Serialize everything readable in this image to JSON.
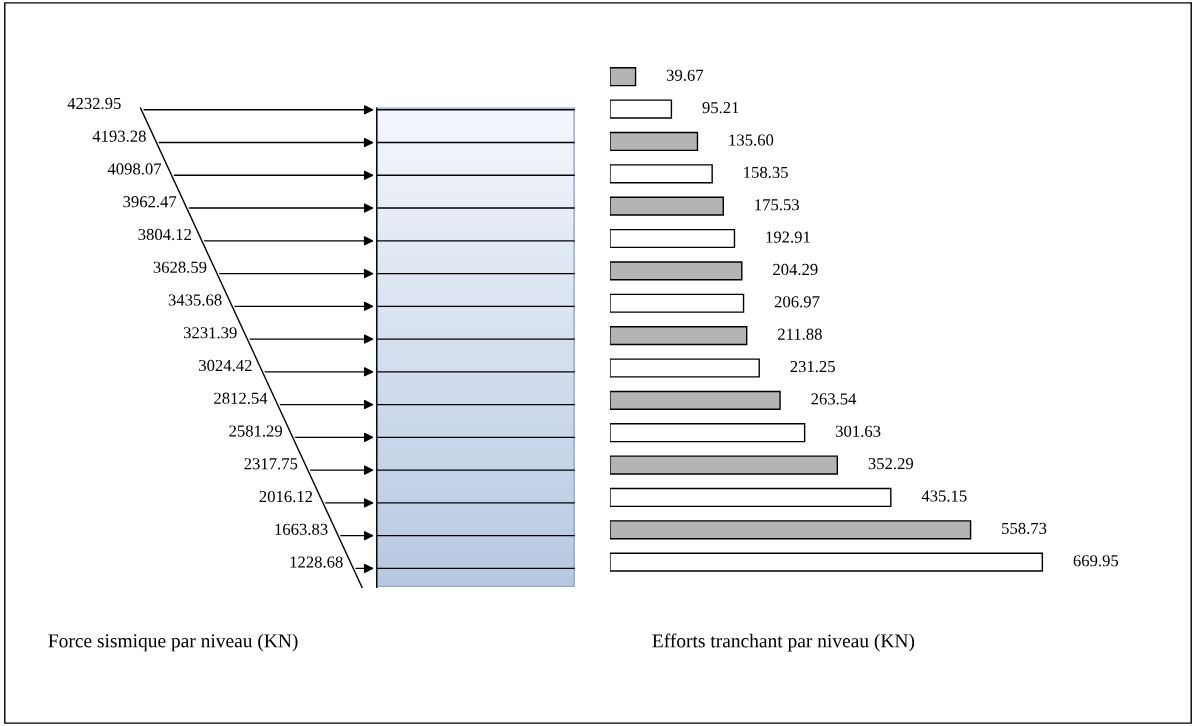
{
  "chart_data": [
    {
      "type": "other",
      "xlabel": "Force sismique par niveau (KN)",
      "categories": [
        null,
        null,
        null,
        null,
        null,
        null,
        null,
        null,
        null,
        null,
        null,
        null,
        null,
        null,
        null
      ],
      "values": [
        4232.95,
        4193.28,
        4098.07,
        3962.47,
        3804.12,
        3628.59,
        3435.68,
        3231.39,
        3024.42,
        2812.54,
        2581.29,
        2317.75,
        2016.12,
        1663.83,
        1228.68
      ],
      "value_labels": [
        "4232.95",
        "4193.28",
        "4098.07",
        "3962.47",
        "3804.12",
        "3628.59",
        "3435.68",
        "3231.39",
        "3024.42",
        "2812.54",
        "2581.29",
        "2317.75",
        "2016.12",
        "1663.83",
        "1228.68"
      ]
    },
    {
      "type": "bar",
      "orientation": "horizontal",
      "xlabel": "Efforts tranchant par niveau (KN)",
      "categories": [
        null,
        null,
        null,
        null,
        null,
        null,
        null,
        null,
        null,
        null,
        null,
        null,
        null,
        null,
        null,
        null
      ],
      "values": [
        39.67,
        95.21,
        135.6,
        158.35,
        175.53,
        192.91,
        204.29,
        206.97,
        211.88,
        231.25,
        263.54,
        301.63,
        352.29,
        435.15,
        558.73,
        669.95
      ],
      "value_labels": [
        "39.67",
        "95.21",
        "135.60",
        "158.35",
        "175.53",
        "192.91",
        "204.29",
        "206.97",
        "211.88",
        "231.25",
        "263.54",
        "301.63",
        "352.29",
        "435.15",
        "558.73",
        "669.95"
      ],
      "colors": [
        "#b4b4b4",
        "#ffffff",
        "#b4b4b4",
        "#ffffff",
        "#b4b4b4",
        "#ffffff",
        "#b4b4b4",
        "#ffffff",
        "#b4b4b4",
        "#ffffff",
        "#b4b4b4",
        "#ffffff",
        "#b4b4b4",
        "#ffffff",
        "#b4b4b4",
        "#ffffff"
      ]
    }
  ]
}
